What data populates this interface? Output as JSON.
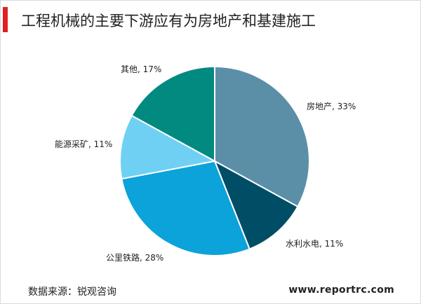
{
  "header": {
    "title": "工程机械的主要下游应有为房地产和基建施工"
  },
  "chart_data": {
    "type": "pie",
    "slices": [
      {
        "label": "房地产",
        "value": 33,
        "display": "房地产, 33%",
        "color": "#5b8fa8"
      },
      {
        "label": "水利水电",
        "value": 11,
        "display": "水利水电, 11%",
        "color": "#004d66"
      },
      {
        "label": "公里铁路",
        "value": 28,
        "display": "公里铁路, 28%",
        "color": "#0ba3d9"
      },
      {
        "label": "能源采矿",
        "value": 11,
        "display": "能源采矿, 11%",
        "color": "#6fd0f4"
      },
      {
        "label": "其他",
        "value": 17,
        "display": "其他, 17%",
        "color": "#008a80"
      }
    ],
    "start_angle": "12 o'clock",
    "direction": "clockwise"
  },
  "footer": {
    "source": "数据来源：锐观咨询",
    "website": "www.reportrc.com"
  }
}
